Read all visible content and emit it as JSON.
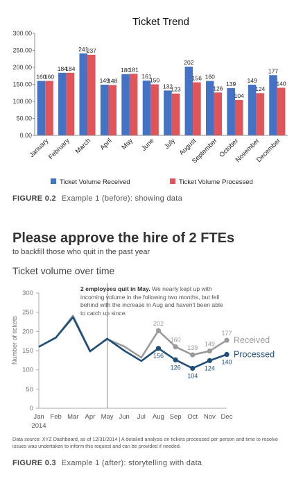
{
  "chart_data": [
    {
      "type": "bar",
      "title": "Ticket Trend",
      "categories": [
        "January",
        "February",
        "March",
        "April",
        "May",
        "June",
        "July",
        "August",
        "September",
        "October",
        "November",
        "December"
      ],
      "series": [
        {
          "name": "Ticket Volume Received",
          "color": "#4472c4",
          "values": [
            160,
            184,
            241,
            149,
            180,
            161,
            132,
            202,
            160,
            139,
            149,
            177
          ]
        },
        {
          "name": "Ticket Volume Processed",
          "color": "#e0555a",
          "values": [
            160,
            184,
            237,
            148,
            181,
            150,
            123,
            156,
            126,
            104,
            124,
            140
          ]
        }
      ],
      "ylim": [
        0,
        300
      ],
      "yticks": [
        {
          "value": 0,
          "label": "0.00"
        },
        {
          "value": 50,
          "label": "50.00"
        },
        {
          "value": 100,
          "label": "100.00"
        },
        {
          "value": 150,
          "label": "150.00"
        },
        {
          "value": 200,
          "label": "200.00"
        },
        {
          "value": 250,
          "label": "250.00"
        },
        {
          "value": 300,
          "label": "300.00"
        }
      ],
      "grid": false,
      "legend": "bottom"
    },
    {
      "type": "line",
      "title": "Please approve the hire of 2 FTEs",
      "subtitle": "to backfill those who quit in the past year",
      "chart_title": "Ticket volume over time",
      "y_label": "Number of tickets",
      "categories": [
        "Jan",
        "Feb",
        "Mar",
        "Apr",
        "May",
        "Jun",
        "Jul",
        "Aug",
        "Sep",
        "Oct",
        "Nov",
        "Dec"
      ],
      "x_sublabel": "2014",
      "series": [
        {
          "name": "Received",
          "color": "#9a9a9a",
          "values": [
            160,
            184,
            241,
            149,
            180,
            161,
            132,
            202,
            160,
            139,
            149,
            177
          ],
          "value_labels": [
            null,
            null,
            null,
            null,
            null,
            null,
            null,
            "202",
            "160",
            "139",
            "149",
            "177"
          ]
        },
        {
          "name": "Processed",
          "color": "#1f4e79",
          "values": [
            160,
            184,
            237,
            148,
            181,
            150,
            123,
            156,
            126,
            104,
            124,
            140
          ],
          "value_labels": [
            null,
            null,
            null,
            null,
            null,
            null,
            null,
            "156",
            "126",
            "104",
            "124",
            "140"
          ]
        }
      ],
      "ylim": [
        0,
        300
      ],
      "yticks": [
        0,
        50,
        100,
        150,
        200,
        250,
        300
      ],
      "grid": false,
      "annotation_bold": "2 employees quit in May.",
      "annotation": "We nearly kept up with incoming volume in the following two months, but fell behind with the increase in Aug and haven't been able to catch up since.",
      "source": "Data source: XYZ Dashboard, as of 12/31/2014 | A detailed analysis on tickets processed per person and time to resolve issues was undertaken to inform this request and can be provided if needed."
    }
  ],
  "figures": [
    {
      "label": "FIGURE 0.2",
      "caption": "Example 1 (before): showing data"
    },
    {
      "label": "FIGURE 0.3",
      "caption": "Example 1 (after): storytelling with data"
    }
  ]
}
